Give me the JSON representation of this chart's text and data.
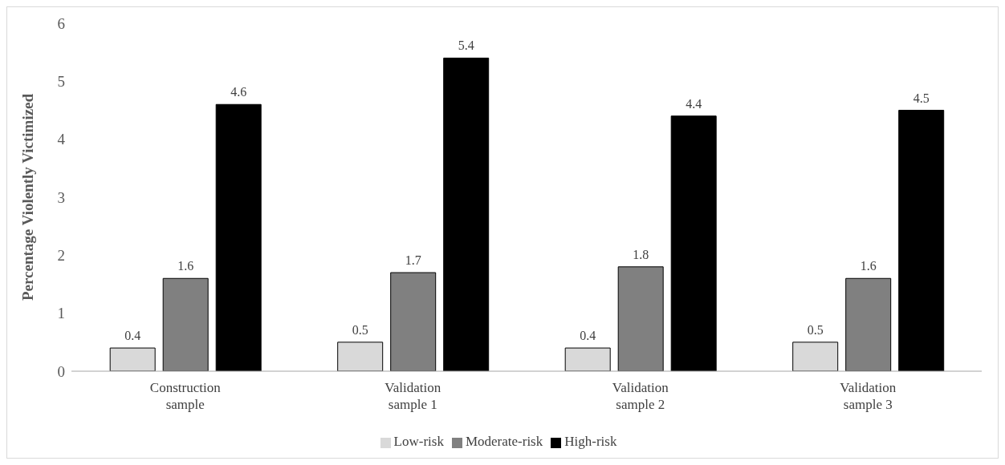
{
  "chart_data": {
    "type": "bar",
    "ylabel": "Percentage Violently Victimized",
    "categories": [
      "Construction sample",
      "Validation sample 1",
      "Validation sample 2",
      "Validation sample 3"
    ],
    "series": [
      {
        "name": "Low-risk",
        "color": "#d9d9d9",
        "values": [
          0.4,
          0.5,
          0.4,
          0.5
        ]
      },
      {
        "name": "Moderate-risk",
        "color": "#808080",
        "values": [
          1.6,
          1.7,
          1.8,
          1.6
        ]
      },
      {
        "name": "High-risk",
        "color": "#000000",
        "values": [
          4.6,
          5.4,
          4.4,
          4.5
        ]
      }
    ],
    "ylim": [
      0,
      6
    ],
    "yticks": [
      0,
      1,
      2,
      3,
      4,
      5,
      6
    ],
    "grid": false,
    "legend": "bottom",
    "data_labels": true
  }
}
